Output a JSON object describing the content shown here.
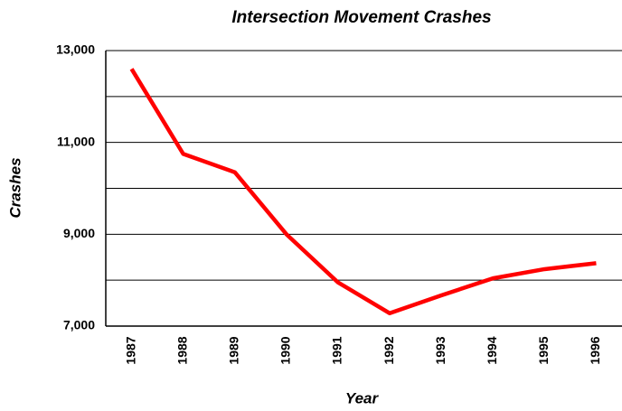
{
  "chart_data": {
    "type": "line",
    "title": "Intersection Movement Crashes",
    "x_label": "Year",
    "y_label": "Crashes",
    "categories": [
      "1987",
      "1988",
      "1989",
      "1990",
      "1991",
      "1992",
      "1993",
      "1994",
      "1995",
      "1996"
    ],
    "series": [
      {
        "name": "Crashes",
        "color": "#ff0000",
        "values": [
          12600,
          10750,
          10350,
          9000,
          7950,
          7280,
          7670,
          8040,
          8240,
          8370
        ]
      }
    ],
    "ylim": [
      7000,
      13000
    ],
    "yticks": [
      {
        "value": 7000,
        "label": "7,000"
      },
      {
        "value": 9000,
        "label": "9,000"
      },
      {
        "value": 11000,
        "label": "11,000"
      },
      {
        "value": 13000,
        "label": "13,000"
      }
    ],
    "minor_yticks": [
      8000,
      10000,
      12000
    ],
    "grid": true
  }
}
